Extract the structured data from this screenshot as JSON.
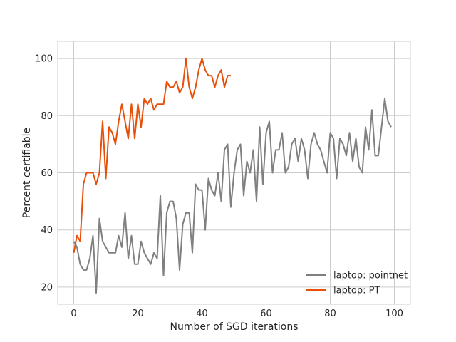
{
  "chart_data": {
    "type": "line",
    "title": "",
    "xlabel": "Number of SGD iterations",
    "ylabel": "Percent certifiable",
    "xlim": [
      -5,
      105
    ],
    "ylim": [
      14,
      106
    ],
    "xticks": [
      0,
      20,
      40,
      60,
      80,
      100
    ],
    "yticks": [
      20,
      40,
      60,
      80,
      100
    ],
    "grid": true,
    "legend_position": "lower-right",
    "series": [
      {
        "name": "laptop: pointnet",
        "color": "#808080",
        "x": [
          0,
          1,
          2,
          3,
          4,
          5,
          6,
          7,
          8,
          9,
          10,
          11,
          12,
          13,
          14,
          15,
          16,
          17,
          18,
          19,
          20,
          21,
          22,
          23,
          24,
          25,
          26,
          27,
          28,
          29,
          30,
          31,
          32,
          33,
          34,
          35,
          36,
          37,
          38,
          39,
          40,
          41,
          42,
          43,
          44,
          45,
          46,
          47,
          48,
          49,
          50,
          51,
          52,
          53,
          54,
          55,
          56,
          57,
          58,
          59,
          60,
          61,
          62,
          63,
          64,
          65,
          66,
          67,
          68,
          69,
          70,
          71,
          72,
          73,
          74,
          75,
          76,
          77,
          78,
          79,
          80,
          81,
          82,
          83,
          84,
          85,
          86,
          87,
          88,
          89,
          90,
          91,
          92,
          93,
          94,
          95,
          96,
          97,
          98,
          99
        ],
        "y": [
          36,
          34,
          28,
          26,
          26,
          30,
          38,
          18,
          44,
          36,
          34,
          32,
          32,
          32,
          38,
          34,
          46,
          30,
          38,
          28,
          28,
          36,
          32,
          30,
          28,
          32,
          30,
          52,
          24,
          46,
          50,
          50,
          44,
          26,
          42,
          46,
          46,
          32,
          56,
          54,
          54,
          40,
          58,
          54,
          52,
          60,
          50,
          68,
          70,
          48,
          60,
          68,
          70,
          52,
          64,
          60,
          68,
          50,
          76,
          56,
          74,
          78,
          60,
          68,
          68,
          74,
          60,
          62,
          70,
          72,
          64,
          72,
          68,
          58,
          70,
          74,
          70,
          68,
          64,
          60,
          74,
          72,
          58,
          72,
          70,
          66,
          74,
          64,
          72,
          62,
          60,
          76,
          68,
          82,
          66,
          66,
          76,
          86,
          78,
          76
        ]
      },
      {
        "name": "laptop: PT",
        "color": "#e8500a",
        "x": [
          0,
          1,
          2,
          3,
          4,
          5,
          6,
          7,
          8,
          9,
          10,
          11,
          12,
          13,
          14,
          15,
          16,
          17,
          18,
          19,
          20,
          21,
          22,
          23,
          24,
          25,
          26,
          27,
          28,
          29,
          30,
          31,
          32,
          33,
          34,
          35,
          36,
          37,
          38,
          39,
          40,
          41,
          42,
          43,
          44,
          45,
          46,
          47,
          48,
          49
        ],
        "y": [
          32,
          38,
          36,
          56,
          60,
          60,
          60,
          56,
          60,
          78,
          58,
          76,
          74,
          70,
          78,
          84,
          78,
          72,
          84,
          72,
          84,
          76,
          86,
          84,
          86,
          82,
          84,
          84,
          84,
          92,
          90,
          90,
          92,
          88,
          90,
          100,
          90,
          86,
          90,
          96,
          100,
          96,
          94,
          94,
          90,
          94,
          96,
          90,
          94,
          94
        ]
      }
    ]
  }
}
